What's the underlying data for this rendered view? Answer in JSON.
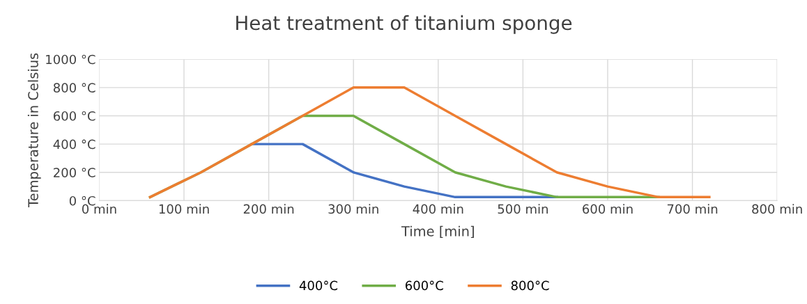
{
  "chart_data": {
    "type": "line",
    "title": "Heat treatment of titanium sponge",
    "xlabel": "Time [min]",
    "ylabel": "Temperature in Celsius",
    "x": [
      60,
      120,
      180,
      240,
      300,
      360,
      420,
      480,
      540,
      600,
      660,
      720
    ],
    "series": [
      {
        "name": "400°C",
        "color": "#4472c4",
        "values": [
          null,
          null,
          400,
          400,
          200,
          100,
          25,
          25,
          25,
          null,
          null,
          null
        ]
      },
      {
        "name": "600°C",
        "color": "#70ad47",
        "values": [
          25,
          200,
          400,
          600,
          600,
          400,
          200,
          100,
          25,
          25,
          25,
          null
        ]
      },
      {
        "name": "800°C",
        "color": "#ed7d31",
        "values": [
          25,
          200,
          400,
          600,
          800,
          800,
          600,
          400,
          200,
          100,
          25,
          25
        ]
      }
    ],
    "xlim": [
      0,
      800
    ],
    "xticks": [
      {
        "value": 0,
        "label": "0 min"
      },
      {
        "value": 100,
        "label": "100 min"
      },
      {
        "value": 200,
        "label": "200 min"
      },
      {
        "value": 300,
        "label": "300 min"
      },
      {
        "value": 400,
        "label": "400 min"
      },
      {
        "value": 500,
        "label": "500 min"
      },
      {
        "value": 600,
        "label": "600 min"
      },
      {
        "value": 700,
        "label": "700 min"
      },
      {
        "value": 800,
        "label": "800 min"
      }
    ],
    "ylim": [
      0,
      1000
    ],
    "yticks": [
      {
        "value": 0,
        "label": "0 °C"
      },
      {
        "value": 200,
        "label": "200 °C"
      },
      {
        "value": 400,
        "label": "400 °C"
      },
      {
        "value": 600,
        "label": "600 °C"
      },
      {
        "value": 800,
        "label": "800 °C"
      },
      {
        "value": 1000,
        "label": "1000 °C"
      }
    ],
    "grid": true,
    "legend": "bottom",
    "marker": "none",
    "line_style": "solid"
  }
}
